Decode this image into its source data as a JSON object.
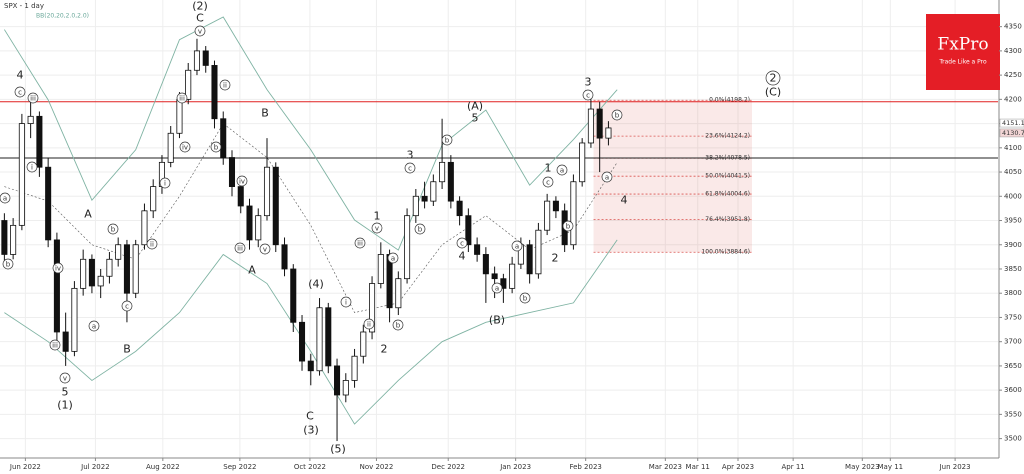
{
  "chart_data": {
    "type": "candlestick",
    "title": "SPX - 1 day",
    "indicator": "BB(20,20,2.0,2.0)",
    "brand": {
      "name": "FxPro",
      "tagline": "Trade Like a Pro",
      "color": "#e41e26"
    },
    "up_color": "#ffffff",
    "down_color": "#111111",
    "ohlc": [
      [
        3950,
        3965,
        3860,
        3880
      ],
      [
        3880,
        3955,
        3870,
        3940
      ],
      [
        3940,
        4170,
        3930,
        4150
      ],
      [
        4150,
        4195,
        4120,
        4165
      ],
      [
        4165,
        4175,
        4040,
        4060
      ],
      [
        4060,
        4080,
        3895,
        3910
      ],
      [
        3910,
        3925,
        3700,
        3720
      ],
      [
        3720,
        3760,
        3650,
        3680
      ],
      [
        3680,
        3825,
        3670,
        3810
      ],
      [
        3810,
        3890,
        3795,
        3870
      ],
      [
        3870,
        3880,
        3800,
        3815
      ],
      [
        3815,
        3850,
        3790,
        3835
      ],
      [
        3835,
        3885,
        3820,
        3870
      ],
      [
        3870,
        3915,
        3855,
        3900
      ],
      [
        3900,
        3910,
        3740,
        3800
      ],
      [
        3800,
        3910,
        3790,
        3900
      ],
      [
        3900,
        3985,
        3890,
        3970
      ],
      [
        3970,
        4035,
        3955,
        4020
      ],
      [
        4020,
        4085,
        4005,
        4070
      ],
      [
        4070,
        4145,
        4060,
        4130
      ],
      [
        4130,
        4215,
        4120,
        4200
      ],
      [
        4200,
        4275,
        4190,
        4260
      ],
      [
        4260,
        4325,
        4250,
        4300
      ],
      [
        4300,
        4310,
        4255,
        4270
      ],
      [
        4270,
        4280,
        4140,
        4160
      ],
      [
        4160,
        4175,
        4065,
        4080
      ],
      [
        4080,
        4095,
        4000,
        4020
      ],
      [
        4020,
        4035,
        3965,
        3980
      ],
      [
        3980,
        3995,
        3890,
        3910
      ],
      [
        3910,
        3975,
        3895,
        3960
      ],
      [
        3960,
        4120,
        3950,
        4060
      ],
      [
        4060,
        4070,
        3885,
        3900
      ],
      [
        3900,
        3915,
        3835,
        3850
      ],
      [
        3850,
        3860,
        3720,
        3740
      ],
      [
        3740,
        3755,
        3640,
        3660
      ],
      [
        3660,
        3675,
        3610,
        3640
      ],
      [
        3640,
        3790,
        3630,
        3770
      ],
      [
        3770,
        3780,
        3635,
        3650
      ],
      [
        3650,
        3665,
        3495,
        3590
      ],
      [
        3590,
        3635,
        3575,
        3620
      ],
      [
        3620,
        3685,
        3605,
        3670
      ],
      [
        3670,
        3735,
        3655,
        3720
      ],
      [
        3720,
        3835,
        3705,
        3820
      ],
      [
        3820,
        3905,
        3810,
        3880
      ],
      [
        3880,
        3890,
        3740,
        3770
      ],
      [
        3770,
        3845,
        3755,
        3830
      ],
      [
        3830,
        3975,
        3820,
        3960
      ],
      [
        3960,
        4015,
        3945,
        4000
      ],
      [
        4000,
        4030,
        3975,
        3990
      ],
      [
        3990,
        4045,
        3980,
        4030
      ],
      [
        4030,
        4160,
        4015,
        4070
      ],
      [
        4070,
        4085,
        3975,
        3990
      ],
      [
        3990,
        4000,
        3940,
        3960
      ],
      [
        3960,
        3975,
        3885,
        3900
      ],
      [
        3900,
        3915,
        3865,
        3880
      ],
      [
        3880,
        3895,
        3780,
        3840
      ],
      [
        3840,
        3855,
        3790,
        3830
      ],
      [
        3830,
        3840,
        3780,
        3810
      ],
      [
        3810,
        3875,
        3800,
        3860
      ],
      [
        3860,
        3915,
        3850,
        3900
      ],
      [
        3900,
        3910,
        3820,
        3840
      ],
      [
        3840,
        3945,
        3830,
        3930
      ],
      [
        3930,
        4005,
        3920,
        3990
      ],
      [
        3990,
        4000,
        3955,
        3970
      ],
      [
        3970,
        3985,
        3885,
        3900
      ],
      [
        3900,
        4045,
        3890,
        4030
      ],
      [
        4030,
        4120,
        4020,
        4110
      ],
      [
        4110,
        4200,
        4100,
        4180
      ],
      [
        4180,
        4195,
        4050,
        4120
      ],
      [
        4120,
        4155,
        4105,
        4141
      ]
    ],
    "bands": {
      "color": "#7fb3a3",
      "x": [
        0,
        5,
        10,
        15,
        20,
        25,
        30,
        35,
        40,
        45,
        50,
        55,
        60,
        65,
        70
      ],
      "upper": [
        4344,
        4199,
        3992,
        4096,
        4323,
        4370,
        4220,
        4096,
        3951,
        3889,
        4106,
        4178,
        4023,
        4117,
        4220
      ],
      "middle": [
        4020,
        3990,
        3900,
        3870,
        4000,
        4150,
        4080,
        3940,
        3760,
        3780,
        3900,
        3960,
        3890,
        3930,
        4070
      ],
      "lower": [
        3760,
        3700,
        3620,
        3680,
        3760,
        3880,
        3820,
        3680,
        3530,
        3620,
        3700,
        3740,
        3760,
        3780,
        3910
      ]
    },
    "lines": [
      {
        "value": 4195,
        "color": "#e02020"
      },
      {
        "value": 4079,
        "color": "#222222"
      }
    ],
    "fib_levels": [
      {
        "value": 4198.2,
        "label": "0.0%(4198.2)"
      },
      {
        "value": 4124.2,
        "label": "23.6%(4124.2)"
      },
      {
        "value": 4078.5,
        "label": "38.2%(4078.5)"
      },
      {
        "value": 4041.5,
        "label": "50.0%(4041.5)"
      },
      {
        "value": 4004.6,
        "label": "61.8%(4004.6)"
      },
      {
        "value": 3951.8,
        "label": "76.4%(3951.8)"
      },
      {
        "value": 3884.6,
        "label": "100.0%(3884.6)"
      }
    ],
    "fib_color": "#d9534f",
    "price_tags": [
      4151.1,
      4130.7
    ],
    "annotations": [
      "4",
      "c",
      "iii",
      "i",
      "a",
      "b",
      "iv",
      "iii",
      "v",
      "5",
      "(1)",
      "A",
      "b",
      "a",
      "c",
      "B",
      "ii",
      "i",
      "(2)",
      "C",
      "v",
      "iii",
      "iv",
      "ii",
      "b",
      "B",
      "iv",
      "iii",
      "v",
      "A",
      "(4)",
      "C",
      "(3)",
      "(5)",
      "i",
      "ii",
      "1",
      "v",
      "iii",
      "a",
      "b",
      "2",
      "3",
      "c",
      "b",
      "(A)",
      "5",
      "b",
      "c",
      "4",
      "a",
      "b",
      "(B)",
      "a",
      "1",
      "c",
      "a",
      "b",
      "2",
      "3",
      "c",
      "a",
      "b",
      "4",
      "2",
      "(C)"
    ],
    "ylim": [
      3460,
      4405
    ],
    "yticks": [
      3500,
      3550,
      3600,
      3650,
      3700,
      3750,
      3800,
      3850,
      3900,
      3950,
      4000,
      4050,
      4100,
      4150,
      4200,
      4250,
      4300,
      4350
    ],
    "xlim": [
      0,
      114
    ],
    "xticks": [
      {
        "value": 2.9,
        "label": "Jun 2022"
      },
      {
        "value": 10.9,
        "label": "Jul 2022"
      },
      {
        "value": 18.6,
        "label": "Aug 2022"
      },
      {
        "value": 27.4,
        "label": "Sep 2022"
      },
      {
        "value": 35.4,
        "label": "Oct 2022"
      },
      {
        "value": 43,
        "label": "Nov 2022"
      },
      {
        "value": 51.2,
        "label": "Dec 2022"
      },
      {
        "value": 58.9,
        "label": "Jan 2023"
      },
      {
        "value": 66.9,
        "label": "Feb 2023"
      },
      {
        "value": 76,
        "label": "Mar 2023"
      },
      {
        "value": 79.7,
        "label": "Mar 11"
      },
      {
        "value": 84.3,
        "label": "Apr 2023"
      },
      {
        "value": 90.6,
        "label": "Apr 11"
      },
      {
        "value": 98.5,
        "label": "May 2023"
      },
      {
        "value": 101.7,
        "label": "May 11"
      },
      {
        "value": 109.1,
        "label": "Jun 2023"
      }
    ],
    "grid": true
  }
}
